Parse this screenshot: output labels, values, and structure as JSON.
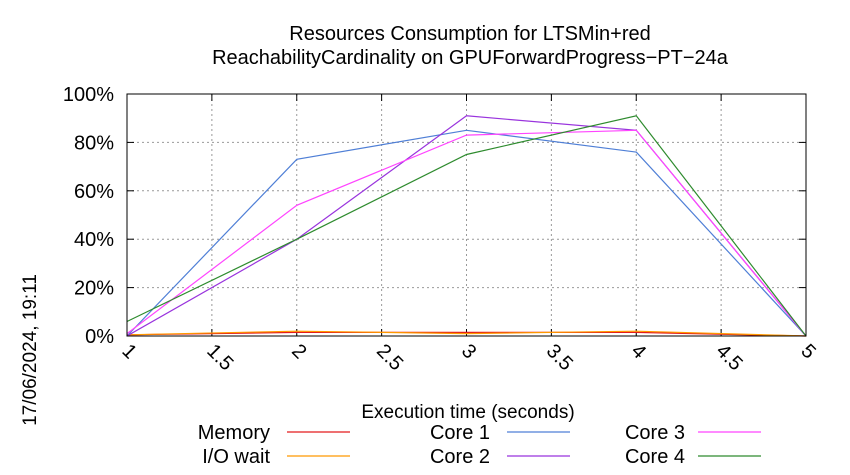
{
  "chart_data": {
    "type": "line",
    "title_line1": "Resources Consumption for LTSMin+red",
    "title_line2": "ReachabilityCardinality on GPUForwardProgress−PT−24a",
    "xlabel": "Execution time (seconds)",
    "ylabel": "",
    "side_label": "17/06/2024, 19:11",
    "xlim": [
      1,
      5
    ],
    "ylim": [
      0,
      100
    ],
    "x_ticks": [
      "1",
      "1.5",
      "2",
      "2.5",
      "3",
      "3.5",
      "4",
      "4.5",
      "5"
    ],
    "y_ticks": [
      "0%",
      "20%",
      "40%",
      "60%",
      "80%",
      "100%"
    ],
    "grid": true,
    "legend_position": "bottom",
    "x": [
      1,
      2,
      3,
      4,
      5
    ],
    "series": [
      {
        "name": "Memory",
        "color": "#e41a1c",
        "values": [
          0.5,
          1.5,
          1.5,
          1.5,
          0
        ]
      },
      {
        "name": "I/O wait",
        "color": "#ff9900",
        "values": [
          0.5,
          2,
          1,
          2,
          0
        ]
      },
      {
        "name": "Core 1",
        "color": "#4f7fd6",
        "values": [
          0,
          73,
          85,
          76,
          0
        ]
      },
      {
        "name": "Core 2",
        "color": "#9933dd",
        "values": [
          0,
          40,
          91,
          85,
          0
        ]
      },
      {
        "name": "Core 3",
        "color": "#ff44ff",
        "values": [
          1,
          54,
          83,
          85,
          0
        ]
      },
      {
        "name": "Core 4",
        "color": "#2e8b2e",
        "values": [
          6,
          40,
          75,
          91,
          0
        ]
      }
    ]
  }
}
